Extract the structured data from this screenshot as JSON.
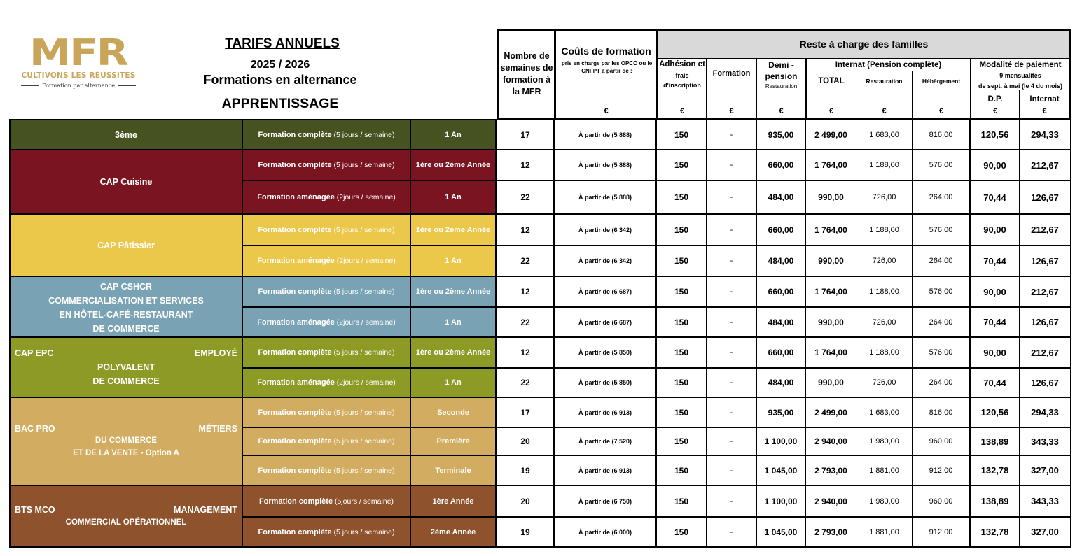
{
  "logo": {
    "brand": "MFR",
    "tagline": "CULTIVONS LES RÉUSSITES",
    "subtitle": "Formation par alternance",
    "color": "#c9a55a"
  },
  "title": {
    "line1": "TARIFS ANNUELS",
    "line2": "2025 / 2026",
    "line3": "Formations en alternance",
    "line4": "APPRENTISSAGE"
  },
  "header": {
    "weeks": "Nombre de semaines de formation à la MFR",
    "cost_title": "Coûts de formation",
    "cost_sub": "pris en charge par les OPCO ou le CNFPT à partir de :",
    "reste": "Reste à charge des familles",
    "adhesion_1": "Adhésion et",
    "adhesion_2": "frais d'inscription",
    "formation": "Formation",
    "demi_1": "Demi - pension",
    "demi_2": "Restauration",
    "internat": "Internat (Pension complète)",
    "total": "TOTAL",
    "restauration": "Restauration",
    "hebergement": "Hébèrgement",
    "modalite": "Modalité de paiement",
    "mensualites": "9 mensualités",
    "mensualites_2": "de sept. à mai (le 4 du mois)",
    "dp": "D.P.",
    "internat_col": "Internat",
    "euro": "€"
  },
  "groups": [
    {
      "name": "3ème",
      "color": "#465220",
      "text_color": "#ffffff"
    },
    {
      "name": "CAP Cuisine",
      "color": "#7a1420",
      "text_color": "#ffffff"
    },
    {
      "name": "CAP Pâtissier",
      "color": "#ebc84a",
      "text_color": "#ffffff"
    },
    {
      "name_lines": [
        "CAP CSHCR",
        "COMMERCIALISATION ET SERVICES",
        "EN HÔTEL-CAFÉ-RESTAURANT",
        "DE COMMERCE"
      ],
      "color": "#79a3b4",
      "text_color": "#ffffff"
    },
    {
      "name_left": "CAP EPC",
      "name_right": "EMPLOYÉ",
      "name_lines": [
        "POLYVALENT",
        "DE COMMERCE"
      ],
      "color": "#8e9a26",
      "text_color": "#ffffff"
    },
    {
      "name_left": "BAC PRO",
      "name_right": "MÉTIERS",
      "name_lines": [
        "DU COMMERCE",
        "ET DE LA VENTE - Option A"
      ],
      "color": "#d2ac60",
      "text_color": "#ffffff"
    },
    {
      "name_left": "BTS MCO",
      "name_right": "MANAGEMENT",
      "name_lines": [
        "COMMERCIAL OPÉRATIONNEL"
      ],
      "color": "#8e522c",
      "text_color": "#ffffff"
    }
  ],
  "rows": [
    {
      "type_b": "Formation complète",
      "type_n": " (5 jours / semaine)",
      "year": "1 An",
      "weeks": "17",
      "cost": "À partir de (5 888)",
      "adhesion": "150",
      "formation": "-",
      "demi": "935,00",
      "total": "2 499,00",
      "rest": "1 683,00",
      "heb": "816,00",
      "dp": "120,56",
      "int": "294,33"
    },
    {
      "type_b": "Formation complète",
      "type_n": " (5 jours / semaine)",
      "year": "1ère ou 2ème Année",
      "weeks": "12",
      "cost": "À partir de (5 888)",
      "adhesion": "150",
      "formation": "-",
      "demi": "660,00",
      "total": "1 764,00",
      "rest": "1 188,00",
      "heb": "576,00",
      "dp": "90,00",
      "int": "212,67"
    },
    {
      "type_b": "Formation aménagée",
      "type_n": " (2jours / semaine)",
      "year": "1 An",
      "weeks": "22",
      "cost": "À partir de (5 888)",
      "adhesion": "150",
      "formation": "-",
      "demi": "484,00",
      "total": "990,00",
      "rest": "726,00",
      "heb": "264,00",
      "dp": "70,44",
      "int": "126,67"
    },
    {
      "type_b": "Formation complète",
      "type_n": " (5 jours / semaine)",
      "year": "1ère ou 2ème Année",
      "weeks": "12",
      "cost": "À partir de (6 342)",
      "adhesion": "150",
      "formation": "-",
      "demi": "660,00",
      "total": "1 764,00",
      "rest": "1 188,00",
      "heb": "576,00",
      "dp": "90,00",
      "int": "212,67"
    },
    {
      "type_b": "Formation aménagée",
      "type_n": " (2jours / semaine)",
      "year": "1 An",
      "weeks": "22",
      "cost": "À partir de (6 342)",
      "adhesion": "150",
      "formation": "-",
      "demi": "484,00",
      "total": "990,00",
      "rest": "726,00",
      "heb": "264,00",
      "dp": "70,44",
      "int": "126,67"
    },
    {
      "type_b": "Formation complète",
      "type_n": " (5 jours / semaine)",
      "year": "1ère ou 2ème Année",
      "weeks": "12",
      "cost": "À partir de (6 687)",
      "adhesion": "150",
      "formation": "-",
      "demi": "660,00",
      "total": "1 764,00",
      "rest": "1 188,00",
      "heb": "576,00",
      "dp": "90,00",
      "int": "212,67"
    },
    {
      "type_b": "Formation aménagée",
      "type_n": " (2jours / semaine)",
      "year": "1 An",
      "weeks": "22",
      "cost": "À partir de (6 687)",
      "adhesion": "150",
      "formation": "-",
      "demi": "484,00",
      "total": "990,00",
      "rest": "726,00",
      "heb": "264,00",
      "dp": "70,44",
      "int": "126,67"
    },
    {
      "type_b": "Formation complète",
      "type_n": " (5 jours / semaine)",
      "year": "1ère ou 2ème Année",
      "weeks": "12",
      "cost": "À partir de (5 850)",
      "adhesion": "150",
      "formation": "-",
      "demi": "660,00",
      "total": "1 764,00",
      "rest": "1 188,00",
      "heb": "576,00",
      "dp": "90,00",
      "int": "212,67"
    },
    {
      "type_b": "Formation aménagée",
      "type_n": " (2jours / semaine)",
      "year": "1 An",
      "weeks": "22",
      "cost": "À partir de (5 850)",
      "adhesion": "150",
      "formation": "-",
      "demi": "484,00",
      "total": "990,00",
      "rest": "726,00",
      "heb": "264,00",
      "dp": "70,44",
      "int": "126,67"
    },
    {
      "type_b": "Formation complète",
      "type_n": " (5 jours / semaine)",
      "year": "Seconde",
      "weeks": "17",
      "cost": "À partir de (6 913)",
      "adhesion": "150",
      "formation": "-",
      "demi": "935,00",
      "total": "2 499,00",
      "rest": "1 683,00",
      "heb": "816,00",
      "dp": "120,56",
      "int": "294,33"
    },
    {
      "type_b": "Formation complète",
      "type_n": " (5 jours / semaine)",
      "year": "Première",
      "weeks": "20",
      "cost": "À partir de (7 520)",
      "adhesion": "150",
      "formation": "-",
      "demi": "1 100,00",
      "total": "2 940,00",
      "rest": "1 980,00",
      "heb": "960,00",
      "dp": "138,89",
      "int": "343,33"
    },
    {
      "type_b": "Formation complète",
      "type_n": " (5 jours / semaine)",
      "year": "Terminale",
      "weeks": "19",
      "cost": "À partir de (6 913)",
      "adhesion": "150",
      "formation": "-",
      "demi": "1 045,00",
      "total": "2 793,00",
      "rest": "1 881,00",
      "heb": "912,00",
      "dp": "132,78",
      "int": "327,00"
    },
    {
      "type_b": "Formation complète",
      "type_n": " (5jours / semaine)",
      "year": "1ère Année",
      "weeks": "20",
      "cost": "À partir de (6 750)",
      "adhesion": "150",
      "formation": "-",
      "demi": "1 100,00",
      "total": "2 940,00",
      "rest": "1 980,00",
      "heb": "960,00",
      "dp": "138,89",
      "int": "343,33"
    },
    {
      "type_b": "Formation complète",
      "type_n": " (5 jours / semaine)",
      "year": "2ème Année",
      "weeks": "19",
      "cost": "À partir de (6 000)",
      "adhesion": "150",
      "formation": "-",
      "demi": "1 045,00",
      "total": "2 793,00",
      "rest": "1 881,00",
      "heb": "912,00",
      "dp": "132,78",
      "int": "327,00"
    }
  ]
}
